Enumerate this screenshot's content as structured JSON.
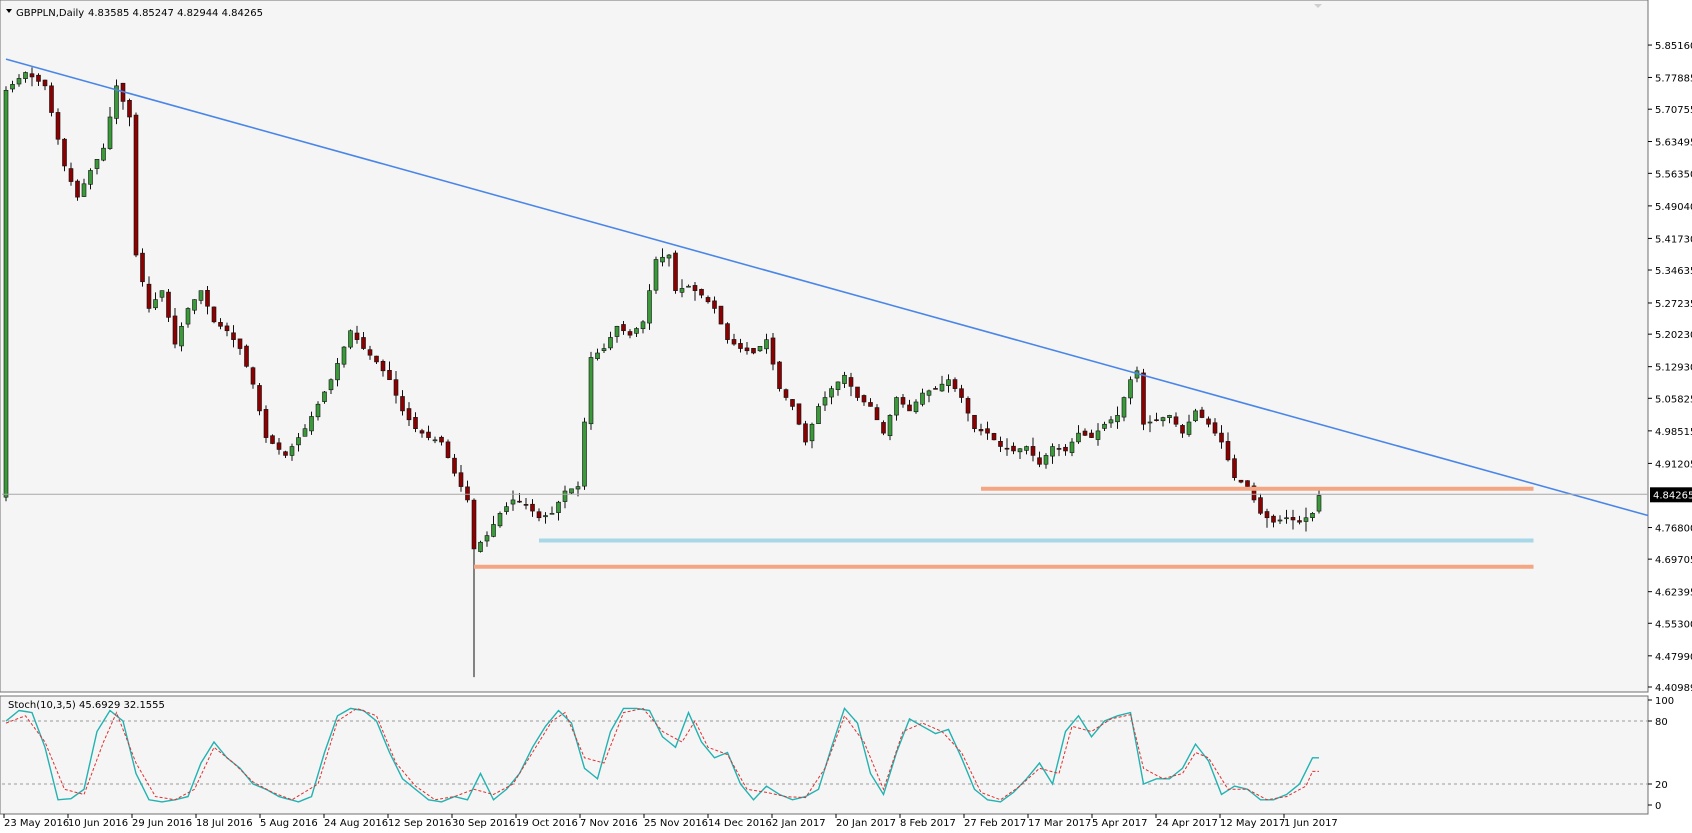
{
  "header": {
    "symbol": "GBPPLN,Daily",
    "ohlc": "4.83585 4.85247 4.82944 4.84265"
  },
  "colors": {
    "background": "#f5f5f5",
    "bull": "#3a9a3a",
    "bear": "#8b0000",
    "trendline": "#4a86e8",
    "resistance": "#f4a582",
    "support": "#a8d8e8",
    "stoch_main": "#22b2b2",
    "stoch_signal": "#e03030"
  },
  "chart_data": [
    {
      "type": "candlestick",
      "title": "GBPPLN,Daily",
      "ylim": [
        4.40989,
        5.8854
      ],
      "y_ticks": [
        "5.85160",
        "5.77885",
        "5.70755",
        "5.63495",
        "5.56350",
        "5.49040",
        "5.41730",
        "5.34635",
        "5.27235",
        "5.20230",
        "5.12930",
        "5.05825",
        "4.98515",
        "4.91205",
        "4.76800",
        "4.69705",
        "4.62395",
        "4.55300",
        "4.47990",
        "4.40989"
      ],
      "x_ticks": [
        "23 May 2016",
        "10 Jun 2016",
        "29 Jun 2016",
        "18 Jul 2016",
        "5 Aug 2016",
        "24 Aug 2016",
        "12 Sep 2016",
        "30 Sep 2016",
        "19 Oct 2016",
        "7 Nov 2016",
        "25 Nov 2016",
        "14 Dec 2016",
        "2 Jan 2017",
        "20 Jan 2017",
        "8 Feb 2017",
        "27 Feb 2017",
        "17 Mar 2017",
        "5 Apr 2017",
        "24 Apr 2017",
        "12 May 2017",
        "1 Jun 2017"
      ],
      "current_price": "4.84265",
      "trendline": {
        "start": {
          "bar": 0,
          "price": 5.82
        },
        "end": {
          "bar": 274,
          "price": 4.795
        }
      },
      "horizontal_levels": [
        {
          "price": 4.855,
          "from_bar": 150,
          "to_bar": 235,
          "role": "resistance"
        },
        {
          "price": 4.739,
          "from_bar": 82,
          "to_bar": 235,
          "role": "support"
        },
        {
          "price": 4.68,
          "from_bar": 72,
          "to_bar": 235,
          "role": "resistance"
        }
      ],
      "anchors": [
        [
          0,
          5.75
        ],
        [
          3,
          5.79
        ],
        [
          6,
          5.76
        ],
        [
          9,
          5.58
        ],
        [
          11,
          5.51
        ],
        [
          13,
          5.57
        ],
        [
          15,
          5.62
        ],
        [
          17,
          5.76
        ],
        [
          19,
          5.69
        ],
        [
          20,
          5.38
        ],
        [
          22,
          5.26
        ],
        [
          24,
          5.3
        ],
        [
          26,
          5.18
        ],
        [
          28,
          5.26
        ],
        [
          30,
          5.3
        ],
        [
          32,
          5.23
        ],
        [
          34,
          5.21
        ],
        [
          36,
          5.17
        ],
        [
          38,
          5.09
        ],
        [
          40,
          4.97
        ],
        [
          43,
          4.93
        ],
        [
          46,
          4.99
        ],
        [
          50,
          5.1
        ],
        [
          53,
          5.21
        ],
        [
          55,
          5.17
        ],
        [
          57,
          5.14
        ],
        [
          59,
          5.1
        ],
        [
          61,
          5.03
        ],
        [
          63,
          4.99
        ],
        [
          65,
          4.97
        ],
        [
          67,
          4.96
        ],
        [
          69,
          4.89
        ],
        [
          71,
          4.83
        ],
        [
          72,
          4.72
        ],
        [
          74,
          4.75
        ],
        [
          76,
          4.8
        ],
        [
          78,
          4.83
        ],
        [
          80,
          4.82
        ],
        [
          82,
          4.79
        ],
        [
          84,
          4.8
        ],
        [
          86,
          4.85
        ],
        [
          88,
          4.86
        ],
        [
          90,
          5.15
        ],
        [
          92,
          5.17
        ],
        [
          94,
          5.22
        ],
        [
          96,
          5.2
        ],
        [
          98,
          5.23
        ],
        [
          100,
          5.37
        ],
        [
          102,
          5.38
        ],
        [
          103,
          5.3
        ],
        [
          105,
          5.31
        ],
        [
          107,
          5.29
        ],
        [
          109,
          5.26
        ],
        [
          111,
          5.19
        ],
        [
          113,
          5.17
        ],
        [
          115,
          5.16
        ],
        [
          117,
          5.19
        ],
        [
          119,
          5.08
        ],
        [
          121,
          5.04
        ],
        [
          123,
          4.96
        ],
        [
          125,
          5.04
        ],
        [
          127,
          5.08
        ],
        [
          129,
          5.11
        ],
        [
          131,
          5.06
        ],
        [
          133,
          5.04
        ],
        [
          135,
          4.98
        ],
        [
          137,
          5.06
        ],
        [
          139,
          5.03
        ],
        [
          141,
          5.07
        ],
        [
          143,
          5.08
        ],
        [
          145,
          5.1
        ],
        [
          147,
          5.06
        ],
        [
          149,
          4.99
        ],
        [
          151,
          4.98
        ],
        [
          153,
          4.95
        ],
        [
          155,
          4.94
        ],
        [
          157,
          4.95
        ],
        [
          159,
          4.91
        ],
        [
          161,
          4.95
        ],
        [
          163,
          4.94
        ],
        [
          165,
          4.98
        ],
        [
          167,
          4.97
        ],
        [
          169,
          5.0
        ],
        [
          171,
          5.02
        ],
        [
          173,
          5.1
        ],
        [
          174,
          5.12
        ],
        [
          175,
          5.0
        ],
        [
          177,
          5.01
        ],
        [
          179,
          5.02
        ],
        [
          181,
          4.98
        ],
        [
          183,
          5.03
        ],
        [
          185,
          5.0
        ],
        [
          187,
          4.96
        ],
        [
          189,
          4.88
        ],
        [
          191,
          4.86
        ],
        [
          193,
          4.8
        ],
        [
          195,
          4.78
        ],
        [
          197,
          4.79
        ],
        [
          199,
          4.78
        ],
        [
          201,
          4.8
        ],
        [
          202,
          4.84
        ]
      ],
      "note_bars": 203
    },
    {
      "type": "line",
      "title": "Stoch(10,3,5) 45.6929 32.1555",
      "ylim": [
        0,
        100
      ],
      "y_ticks": [
        "100",
        "80",
        "20",
        "0"
      ],
      "levels": [
        80,
        20
      ],
      "series": [
        {
          "name": "main",
          "anchors": [
            [
              0,
              80
            ],
            [
              2,
              90
            ],
            [
              4,
              88
            ],
            [
              6,
              55
            ],
            [
              8,
              5
            ],
            [
              10,
              6
            ],
            [
              12,
              15
            ],
            [
              14,
              70
            ],
            [
              16,
              90
            ],
            [
              18,
              80
            ],
            [
              20,
              30
            ],
            [
              22,
              5
            ],
            [
              24,
              3
            ],
            [
              26,
              5
            ],
            [
              28,
              8
            ],
            [
              30,
              40
            ],
            [
              32,
              60
            ],
            [
              34,
              45
            ],
            [
              36,
              35
            ],
            [
              38,
              20
            ],
            [
              40,
              15
            ],
            [
              42,
              8
            ],
            [
              45,
              3
            ],
            [
              47,
              8
            ],
            [
              49,
              50
            ],
            [
              51,
              85
            ],
            [
              53,
              92
            ],
            [
              55,
              90
            ],
            [
              57,
              80
            ],
            [
              59,
              50
            ],
            [
              61,
              25
            ],
            [
              63,
              15
            ],
            [
              65,
              5
            ],
            [
              67,
              3
            ],
            [
              69,
              8
            ],
            [
              71,
              5
            ],
            [
              73,
              30
            ],
            [
              75,
              5
            ],
            [
              77,
              15
            ],
            [
              79,
              30
            ],
            [
              81,
              55
            ],
            [
              83,
              75
            ],
            [
              85,
              90
            ],
            [
              87,
              78
            ],
            [
              89,
              35
            ],
            [
              91,
              25
            ],
            [
              93,
              70
            ],
            [
              95,
              92
            ],
            [
              97,
              92
            ],
            [
              99,
              90
            ],
            [
              101,
              65
            ],
            [
              103,
              55
            ],
            [
              105,
              88
            ],
            [
              107,
              60
            ],
            [
              109,
              45
            ],
            [
              111,
              50
            ],
            [
              113,
              20
            ],
            [
              115,
              5
            ],
            [
              117,
              18
            ],
            [
              119,
              10
            ],
            [
              121,
              5
            ],
            [
              123,
              8
            ],
            [
              125,
              15
            ],
            [
              127,
              55
            ],
            [
              129,
              92
            ],
            [
              131,
              78
            ],
            [
              133,
              30
            ],
            [
              135,
              10
            ],
            [
              137,
              50
            ],
            [
              139,
              82
            ],
            [
              141,
              75
            ],
            [
              143,
              68
            ],
            [
              145,
              72
            ],
            [
              147,
              45
            ],
            [
              149,
              15
            ],
            [
              151,
              5
            ],
            [
              153,
              3
            ],
            [
              155,
              12
            ],
            [
              157,
              25
            ],
            [
              159,
              40
            ],
            [
              161,
              20
            ],
            [
              163,
              70
            ],
            [
              165,
              85
            ],
            [
              167,
              65
            ],
            [
              169,
              80
            ],
            [
              171,
              85
            ],
            [
              173,
              88
            ],
            [
              175,
              20
            ],
            [
              177,
              25
            ],
            [
              179,
              25
            ],
            [
              181,
              35
            ],
            [
              183,
              58
            ],
            [
              185,
              42
            ],
            [
              187,
              10
            ],
            [
              189,
              18
            ],
            [
              191,
              15
            ],
            [
              193,
              5
            ],
            [
              195,
              5
            ],
            [
              197,
              10
            ],
            [
              199,
              20
            ],
            [
              201,
              45
            ]
          ]
        },
        {
          "name": "signal",
          "anchors": [
            [
              0,
              78
            ],
            [
              3,
              85
            ],
            [
              6,
              60
            ],
            [
              9,
              15
            ],
            [
              12,
              10
            ],
            [
              15,
              60
            ],
            [
              17,
              88
            ],
            [
              20,
              40
            ],
            [
              23,
              8
            ],
            [
              26,
              5
            ],
            [
              29,
              15
            ],
            [
              32,
              55
            ],
            [
              35,
              40
            ],
            [
              38,
              22
            ],
            [
              41,
              12
            ],
            [
              44,
              5
            ],
            [
              48,
              20
            ],
            [
              51,
              80
            ],
            [
              54,
              92
            ],
            [
              57,
              85
            ],
            [
              60,
              40
            ],
            [
              63,
              18
            ],
            [
              66,
              5
            ],
            [
              69,
              8
            ],
            [
              72,
              15
            ],
            [
              75,
              10
            ],
            [
              78,
              20
            ],
            [
              81,
              50
            ],
            [
              84,
              80
            ],
            [
              86,
              88
            ],
            [
              89,
              45
            ],
            [
              92,
              40
            ],
            [
              95,
              88
            ],
            [
              98,
              92
            ],
            [
              101,
              70
            ],
            [
              104,
              60
            ],
            [
              106,
              80
            ],
            [
              108,
              55
            ],
            [
              111,
              48
            ],
            [
              114,
              15
            ],
            [
              117,
              12
            ],
            [
              120,
              8
            ],
            [
              123,
              7
            ],
            [
              126,
              35
            ],
            [
              129,
              85
            ],
            [
              132,
              60
            ],
            [
              135,
              15
            ],
            [
              138,
              70
            ],
            [
              141,
              78
            ],
            [
              144,
              70
            ],
            [
              147,
              50
            ],
            [
              150,
              12
            ],
            [
              153,
              5
            ],
            [
              156,
              18
            ],
            [
              159,
              35
            ],
            [
              162,
              30
            ],
            [
              164,
              75
            ],
            [
              167,
              70
            ],
            [
              170,
              82
            ],
            [
              173,
              86
            ],
            [
              175,
              35
            ],
            [
              178,
              25
            ],
            [
              181,
              30
            ],
            [
              183,
              50
            ],
            [
              185,
              45
            ],
            [
              188,
              15
            ],
            [
              191,
              15
            ],
            [
              194,
              5
            ],
            [
              197,
              8
            ],
            [
              200,
              18
            ],
            [
              201,
              32
            ]
          ]
        }
      ]
    }
  ]
}
